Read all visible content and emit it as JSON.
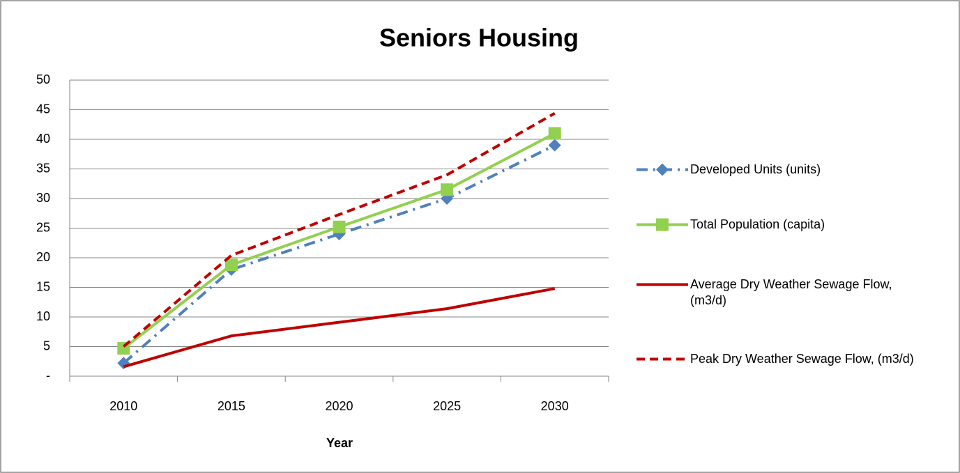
{
  "chart_data": {
    "type": "line",
    "title": "Seniors Housing",
    "x_label": "Year",
    "categories": [
      "2010",
      "2015",
      "2020",
      "2025",
      "2030"
    ],
    "ylim": [
      0,
      50
    ],
    "yticks": [
      {
        "value": 0,
        "label": "-"
      },
      5,
      10,
      15,
      20,
      25,
      30,
      35,
      40,
      45,
      50
    ],
    "grid": true,
    "legend": "right",
    "series": [
      {
        "name": "Developed Units (units)",
        "color": "#4f81bd",
        "style": "dashdot",
        "marker": "diamond",
        "values": [
          2.2,
          18,
          24,
          30,
          39
        ]
      },
      {
        "name": "Total Population (capita)",
        "color": "#92d050",
        "style": "solid",
        "marker": "square",
        "values": [
          4.7,
          18.8,
          25.2,
          31.5,
          41
        ]
      },
      {
        "name": "Average Dry Weather Sewage Flow, (m3/d)",
        "color": "#c00000",
        "style": "solid",
        "marker": "none",
        "values": [
          1.6,
          6.8,
          9.1,
          11.4,
          14.8
        ]
      },
      {
        "name": "Peak Dry Weather Sewage Flow, (m3/d)",
        "color": "#c00000",
        "style": "dashed",
        "marker": "none",
        "values": [
          5,
          20.4,
          27.3,
          34,
          44.4
        ]
      }
    ]
  }
}
